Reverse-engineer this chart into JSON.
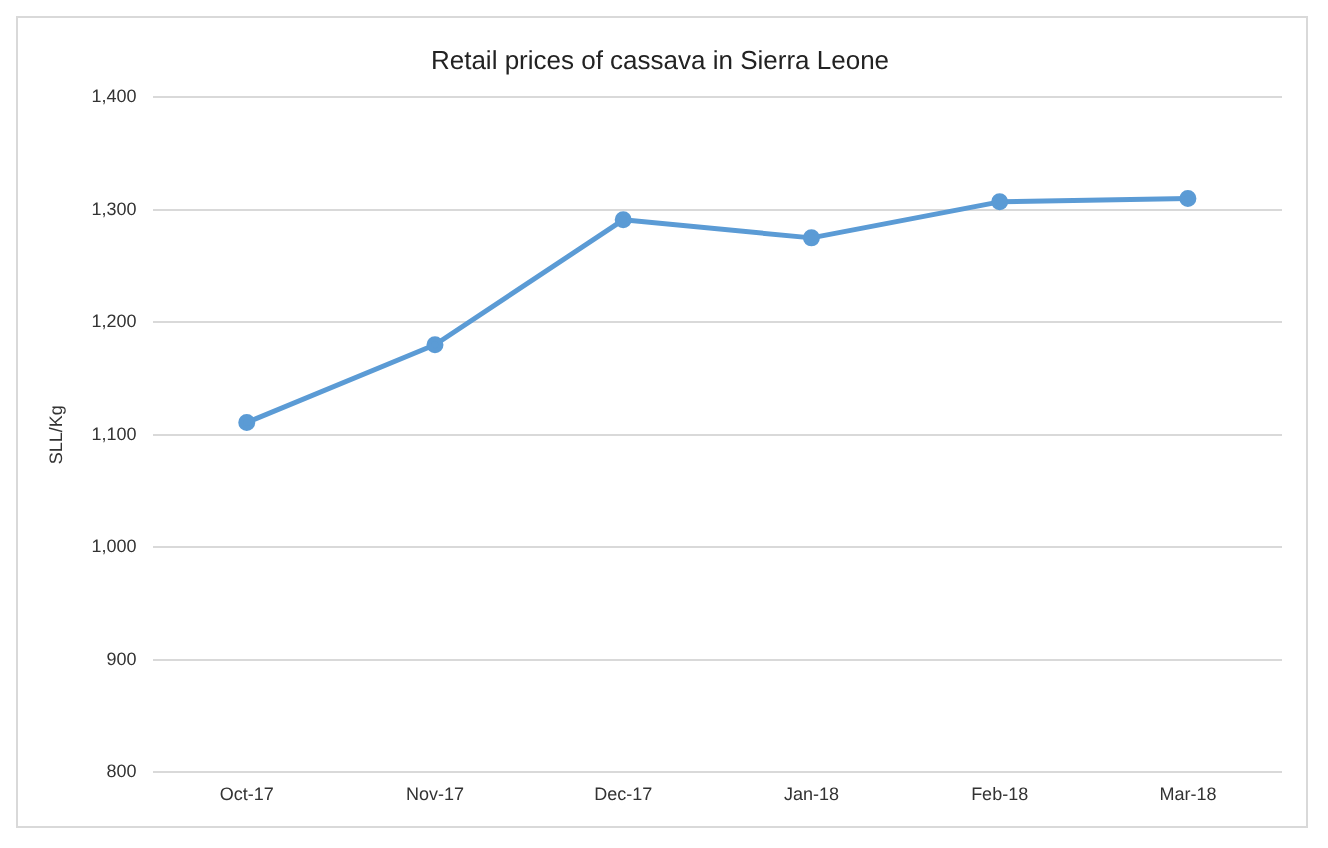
{
  "chart_data": {
    "type": "line",
    "title": "Retail prices of cassava in Sierra Leone",
    "ylabel": "SLL/Kg",
    "categories": [
      "Oct-17",
      "Nov-17",
      "Dec-17",
      "Jan-18",
      "Feb-18",
      "Mar-18"
    ],
    "series": [
      {
        "color": "#5b9bd5",
        "values": [
          1111,
          1180,
          1291,
          1275,
          1307,
          1310
        ]
      }
    ],
    "ylim": [
      800,
      1400
    ],
    "yticks": [
      {
        "value": 800,
        "label": "800"
      },
      {
        "value": 900,
        "label": "900"
      },
      {
        "value": 1000,
        "label": "1,000"
      },
      {
        "value": 1100,
        "label": "1,100"
      },
      {
        "value": 1200,
        "label": "1,200"
      },
      {
        "value": 1300,
        "label": "1,300"
      },
      {
        "value": 1400,
        "label": "1,400"
      }
    ],
    "grid": "y",
    "legend": false,
    "marker": "circle",
    "line_style": "solid"
  }
}
